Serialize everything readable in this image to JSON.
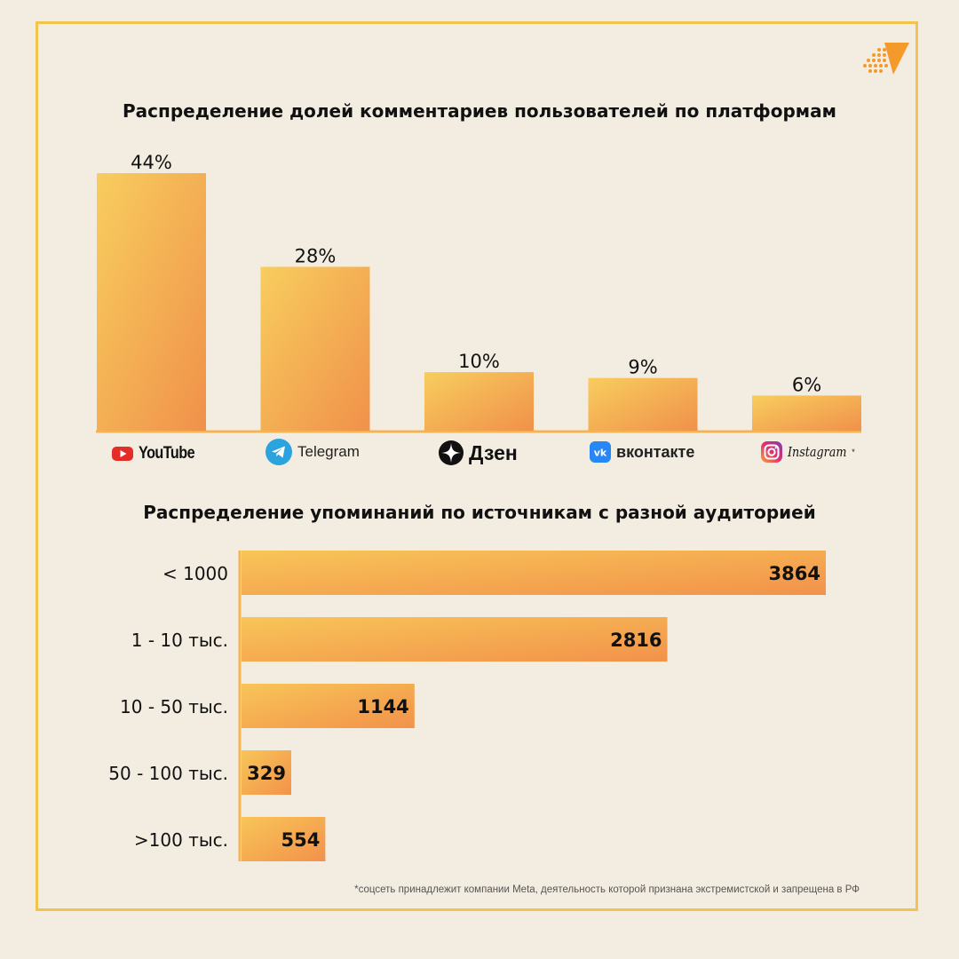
{
  "chart_data": [
    {
      "type": "bar",
      "title": "Распределение долей комментариев пользователей  по платформам",
      "categories": [
        "YouTube",
        "Telegram",
        "Дзен",
        "вконтакте",
        "Instagram"
      ],
      "values": [
        44,
        28,
        10,
        9,
        6
      ],
      "value_labels": [
        "44%",
        "28%",
        "10%",
        "9%",
        "6%"
      ],
      "unit": "%",
      "ylim": [
        0,
        44
      ],
      "grid": false,
      "colors": [
        "#f8c85a",
        "#f29a48"
      ]
    },
    {
      "type": "bar",
      "orientation": "horizontal",
      "title": "Распределение  упоминаний по источникам с разной аудиторией",
      "categories": [
        "< 1000",
        "1 - 10 тыс.",
        "10 - 50 тыс.",
        "50 - 100 тыс.",
        ">100 тыс."
      ],
      "values": [
        3864,
        2816,
        1144,
        329,
        554
      ],
      "xlim": [
        0,
        3864
      ],
      "grid": false,
      "colors": [
        "#f8c85a",
        "#f29a48"
      ]
    }
  ],
  "platforms": {
    "youtube": {
      "label": "YouTube",
      "icon": "youtube-icon",
      "color": "#e52d27"
    },
    "telegram": {
      "label": "Telegram",
      "icon": "telegram-icon",
      "color": "#2aa3df"
    },
    "dzen": {
      "label": "Дзен",
      "icon": "dzen-icon",
      "color": "#111111"
    },
    "vk": {
      "label": "вконтакте",
      "icon": "vk-icon",
      "color": "#2787f5"
    },
    "instagram": {
      "label": "Instagram",
      "mark": "*",
      "icon": "instagram-icon",
      "color": "#c13584"
    }
  },
  "logo": {
    "icon": "brand-logo-icon",
    "color": "#f39a2b"
  },
  "footnote": "*соцсеть принадлежит компании Meta, деятельность которой признана экстремистской и запрещена в РФ"
}
